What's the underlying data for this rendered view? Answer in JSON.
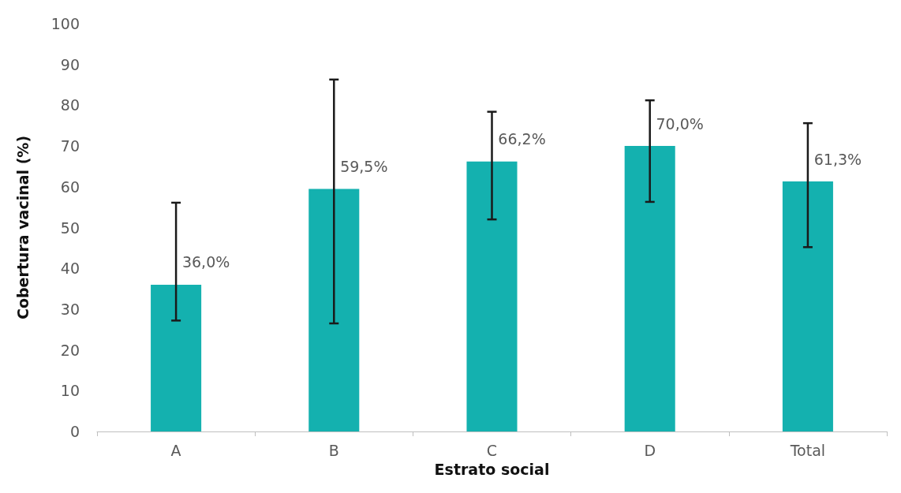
{
  "chart_data": {
    "type": "bar",
    "xlabel": "Estrato social",
    "ylabel": "Cobertura vacinal (%)",
    "categories": [
      "A",
      "B",
      "C",
      "D",
      "Total"
    ],
    "values": [
      36.0,
      59.5,
      66.2,
      70.0,
      61.3
    ],
    "value_labels": [
      "36,0%",
      "59,5%",
      "66,2%",
      "70,0%",
      "61,3%"
    ],
    "errors": [
      [
        27.2,
        56.1
      ],
      [
        26.5,
        86.3
      ],
      [
        52.0,
        78.4
      ],
      [
        56.3,
        81.2
      ],
      [
        45.2,
        75.6
      ]
    ],
    "color": "#14b1af",
    "ylim": [
      0,
      100
    ],
    "yticks": [
      0,
      10,
      20,
      30,
      40,
      50,
      60,
      70,
      80,
      90,
      100
    ],
    "grid": false
  }
}
